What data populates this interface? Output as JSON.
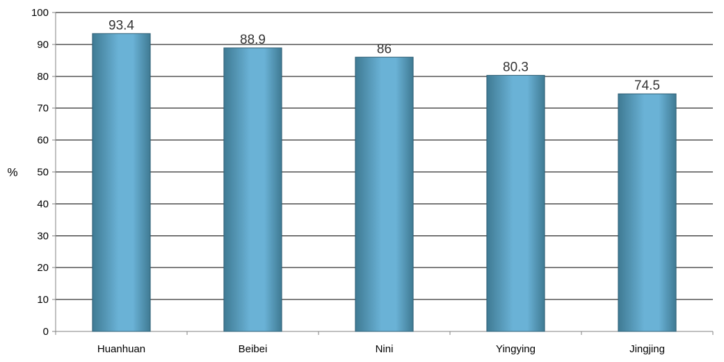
{
  "chart_data": {
    "type": "bar",
    "categories": [
      "Huanhuan",
      "Beibei",
      "Nini",
      "Yingying",
      "Jingjing"
    ],
    "values": [
      93.4,
      88.9,
      86,
      80.3,
      74.5
    ],
    "value_labels": [
      "93.4",
      "88.9",
      "86",
      "80.3",
      "74.5"
    ],
    "title": "",
    "xlabel": "",
    "ylabel": "%",
    "ylim": [
      0,
      100
    ],
    "yticks": [
      0,
      10,
      20,
      30,
      40,
      50,
      60,
      70,
      80,
      90,
      100
    ],
    "grid": true,
    "legend": "none",
    "colors": {
      "bar_edge": "#3f7a93",
      "bar_mid": "#6ab2d6",
      "bar_outline": "#2f5f75",
      "gridline": "#000000",
      "axis": "#808080",
      "text": "#000000",
      "data_label": "#333333"
    }
  }
}
